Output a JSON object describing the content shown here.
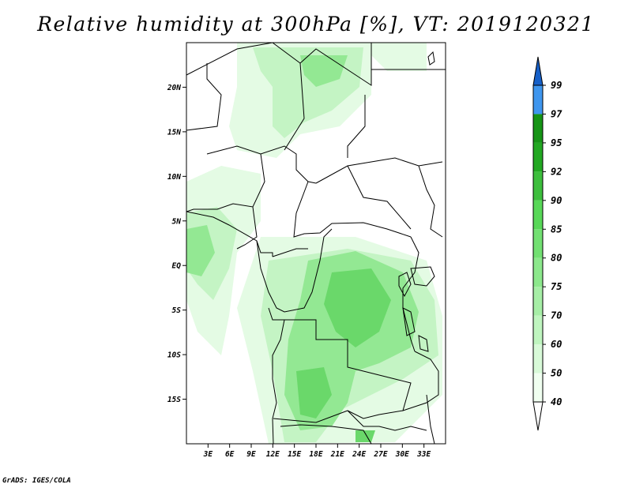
{
  "title": "Relative humidity at 300hPa [%], VT: 2019120321",
  "credit": "GrADS: IGES/COLA",
  "map": {
    "lon_range": [
      0,
      36
    ],
    "lat_range": [
      -20,
      25
    ],
    "lon_ticks": [
      {
        "value": 3,
        "label": "3E"
      },
      {
        "value": 6,
        "label": "6E"
      },
      {
        "value": 9,
        "label": "9E"
      },
      {
        "value": 12,
        "label": "12E"
      },
      {
        "value": 15,
        "label": "15E"
      },
      {
        "value": 18,
        "label": "18E"
      },
      {
        "value": 21,
        "label": "21E"
      },
      {
        "value": 24,
        "label": "24E"
      },
      {
        "value": 27,
        "label": "27E"
      },
      {
        "value": 30,
        "label": "30E"
      },
      {
        "value": 33,
        "label": "33E"
      }
    ],
    "lat_ticks": [
      {
        "value": 20,
        "label": "20N"
      },
      {
        "value": 15,
        "label": "15N"
      },
      {
        "value": 10,
        "label": "10N"
      },
      {
        "value": 5,
        "label": "5N"
      },
      {
        "value": 0,
        "label": "EQ"
      },
      {
        "value": -5,
        "label": "5S"
      },
      {
        "value": -10,
        "label": "10S"
      },
      {
        "value": -15,
        "label": "15S"
      }
    ]
  },
  "colorbar": {
    "levels": [
      {
        "label": "40",
        "color": "#f0fff0"
      },
      {
        "label": "50",
        "color": "#d8fad8"
      },
      {
        "label": "60",
        "color": "#bff5bf"
      },
      {
        "label": "70",
        "color": "#a6eea6"
      },
      {
        "label": "75",
        "color": "#8ce88c"
      },
      {
        "label": "80",
        "color": "#72e072"
      },
      {
        "label": "85",
        "color": "#58d858"
      },
      {
        "label": "90",
        "color": "#3dbe3d"
      },
      {
        "label": "92",
        "color": "#22a822"
      },
      {
        "label": "95",
        "color": "#169416"
      },
      {
        "label": "97",
        "color": "#3f96ee"
      },
      {
        "label": "99",
        "color": "#2472db"
      }
    ],
    "low_color": "#ffffff",
    "high_color": "#1660c8"
  }
}
